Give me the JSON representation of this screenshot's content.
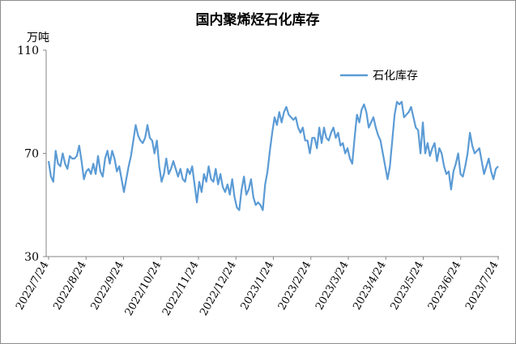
{
  "chart_data": {
    "type": "line",
    "title": "国内聚烯烃石化库存",
    "unit_label": "万吨",
    "legend_position": "top-right",
    "grid": false,
    "ylim": [
      30,
      110
    ],
    "yticks": [
      30,
      70,
      110
    ],
    "x_labels": [
      "2022/7/24",
      "2022/8/24",
      "2022/9/24",
      "2022/10/24",
      "2022/11/24",
      "2022/12/24",
      "2023/1/24",
      "2023/2/24",
      "2023/3/24",
      "2023/4/24",
      "2023/5/24",
      "2023/6/24",
      "2023/7/24"
    ],
    "series": [
      {
        "name": "石化库存",
        "color": "#5b9bd5",
        "values": [
          67,
          61,
          59,
          71,
          66,
          65,
          70,
          66,
          64,
          69,
          68,
          68,
          69,
          73,
          67,
          60,
          63,
          64,
          62,
          66,
          62,
          69,
          63,
          61,
          68,
          71,
          66,
          71,
          68,
          63,
          65,
          60,
          55,
          60,
          65,
          69,
          75,
          81,
          77,
          75,
          74,
          76,
          81,
          76,
          75,
          70,
          75,
          65,
          59,
          62,
          68,
          62,
          64,
          67,
          64,
          61,
          64,
          60,
          59,
          64,
          62,
          65,
          58,
          51,
          59,
          55,
          62,
          59,
          65,
          60,
          59,
          64,
          58,
          62,
          57,
          55,
          58,
          54,
          60,
          53,
          49,
          48,
          56,
          61,
          54,
          56,
          60,
          53,
          50,
          51,
          50,
          48,
          58,
          63,
          71,
          78,
          84,
          81,
          86,
          82,
          86,
          88,
          85,
          84,
          83,
          84,
          80,
          78,
          80,
          75,
          75,
          70,
          76,
          76,
          72,
          80,
          74,
          80,
          76,
          75,
          78,
          80,
          76,
          78,
          73,
          74,
          70,
          72,
          68,
          66,
          76,
          85,
          82,
          87,
          89,
          86,
          80,
          82,
          84,
          80,
          77,
          75,
          70,
          65,
          60,
          65,
          75,
          85,
          90,
          89,
          90,
          84,
          85,
          86,
          88,
          84,
          80,
          79,
          70,
          82,
          70,
          74,
          69,
          72,
          74,
          67,
          72,
          70,
          65,
          62,
          63,
          56,
          63,
          66,
          70,
          62,
          61,
          65,
          70,
          78,
          73,
          70,
          71,
          72,
          67,
          62,
          65,
          68,
          63,
          60,
          64,
          65
        ]
      }
    ]
  }
}
